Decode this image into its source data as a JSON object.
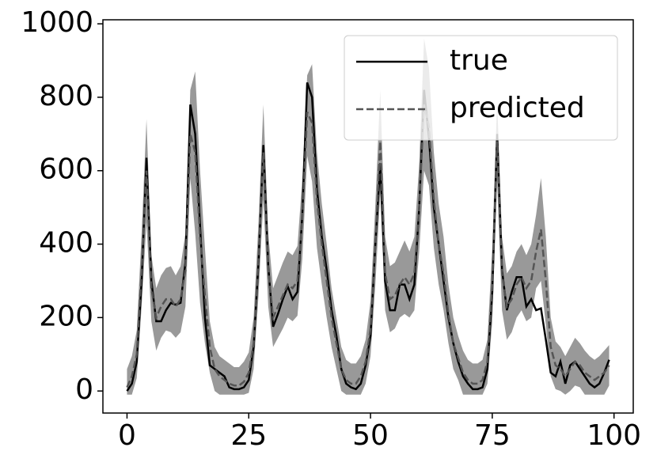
{
  "chart_data": {
    "type": "line",
    "x": [
      0,
      1,
      2,
      3,
      4,
      5,
      6,
      7,
      8,
      9,
      10,
      11,
      12,
      13,
      14,
      15,
      16,
      17,
      18,
      19,
      20,
      21,
      22,
      23,
      24,
      25,
      26,
      27,
      28,
      29,
      30,
      31,
      32,
      33,
      34,
      35,
      36,
      37,
      38,
      39,
      40,
      41,
      42,
      43,
      44,
      45,
      46,
      47,
      48,
      49,
      50,
      51,
      52,
      53,
      54,
      55,
      56,
      57,
      58,
      59,
      60,
      61,
      62,
      63,
      64,
      65,
      66,
      67,
      68,
      69,
      70,
      71,
      72,
      73,
      74,
      75,
      76,
      77,
      78,
      79,
      80,
      81,
      82,
      83,
      84,
      85,
      86,
      87,
      88,
      89,
      90,
      91,
      92,
      93,
      94,
      95,
      96,
      97,
      98,
      99
    ],
    "series": [
      {
        "name": "true",
        "color": "#000000",
        "dashed": false,
        "values": [
          0,
          20,
          80,
          300,
          635,
          300,
          190,
          190,
          220,
          240,
          235,
          240,
          350,
          780,
          700,
          450,
          200,
          70,
          60,
          50,
          40,
          10,
          5,
          5,
          10,
          30,
          120,
          350,
          670,
          340,
          175,
          210,
          250,
          285,
          250,
          270,
          480,
          840,
          800,
          550,
          420,
          330,
          220,
          150,
          60,
          20,
          10,
          5,
          20,
          70,
          150,
          400,
          620,
          300,
          220,
          220,
          290,
          290,
          250,
          290,
          500,
          820,
          690,
          500,
          400,
          300,
          200,
          130,
          80,
          40,
          20,
          5,
          5,
          10,
          60,
          270,
          700,
          330,
          220,
          270,
          310,
          310,
          230,
          250,
          220,
          225,
          140,
          50,
          40,
          80,
          20,
          70,
          80,
          60,
          40,
          20,
          10,
          20,
          50,
          85
        ]
      },
      {
        "name": "predicted",
        "color": "#555555",
        "dashed": true,
        "values": [
          10,
          40,
          100,
          330,
          600,
          280,
          200,
          230,
          250,
          250,
          230,
          250,
          330,
          700,
          650,
          420,
          260,
          120,
          60,
          40,
          30,
          20,
          15,
          15,
          25,
          50,
          130,
          360,
          650,
          330,
          200,
          230,
          260,
          290,
          280,
          300,
          470,
          760,
          730,
          520,
          400,
          300,
          200,
          130,
          60,
          30,
          20,
          20,
          40,
          80,
          170,
          400,
          680,
          320,
          250,
          260,
          290,
          310,
          290,
          320,
          500,
          780,
          720,
          520,
          400,
          320,
          210,
          130,
          90,
          50,
          30,
          20,
          20,
          30,
          80,
          290,
          680,
          320,
          230,
          250,
          290,
          310,
          280,
          300,
          380,
          440,
          300,
          120,
          70,
          60,
          40,
          60,
          80,
          70,
          50,
          40,
          30,
          40,
          50,
          70
        ]
      }
    ],
    "band": {
      "color": "#999999",
      "upper": [
        60,
        95,
        165,
        430,
        740,
        370,
        280,
        315,
        335,
        340,
        315,
        340,
        430,
        820,
        870,
        600,
        390,
        190,
        120,
        95,
        85,
        75,
        65,
        65,
        80,
        105,
        200,
        460,
        780,
        430,
        280,
        315,
        350,
        380,
        370,
        395,
        580,
        860,
        890,
        650,
        510,
        400,
        280,
        200,
        120,
        85,
        75,
        75,
        95,
        140,
        245,
        510,
        820,
        420,
        340,
        350,
        380,
        410,
        380,
        420,
        620,
        960,
        880,
        650,
        510,
        420,
        290,
        200,
        150,
        110,
        85,
        75,
        75,
        85,
        140,
        390,
        790,
        420,
        320,
        340,
        380,
        400,
        370,
        400,
        480,
        580,
        420,
        200,
        135,
        120,
        95,
        120,
        145,
        130,
        110,
        95,
        85,
        95,
        110,
        125
      ],
      "lower": [
        -10,
        -10,
        35,
        230,
        460,
        190,
        110,
        145,
        165,
        160,
        145,
        160,
        230,
        580,
        430,
        240,
        130,
        50,
        0,
        -10,
        -10,
        -10,
        -10,
        -10,
        -10,
        -5,
        60,
        260,
        520,
        230,
        120,
        145,
        170,
        200,
        190,
        205,
        360,
        640,
        570,
        390,
        290,
        200,
        120,
        60,
        0,
        -10,
        -10,
        -10,
        -10,
        20,
        95,
        290,
        540,
        220,
        160,
        170,
        200,
        210,
        200,
        220,
        380,
        600,
        560,
        390,
        290,
        220,
        130,
        60,
        30,
        -10,
        -10,
        -10,
        -10,
        -10,
        20,
        190,
        570,
        220,
        140,
        160,
        200,
        220,
        190,
        200,
        280,
        300,
        180,
        40,
        5,
        0,
        -10,
        0,
        15,
        10,
        -10,
        -10,
        -10,
        -10,
        -10,
        15
      ]
    },
    "xlim": [
      -4.95,
      103.95
    ],
    "xticks": [
      0,
      25,
      50,
      75,
      100
    ],
    "ylim": [
      -60,
      1011
    ],
    "yticks": [
      0,
      200,
      400,
      600,
      800,
      1000
    ],
    "legend": "upper right"
  }
}
